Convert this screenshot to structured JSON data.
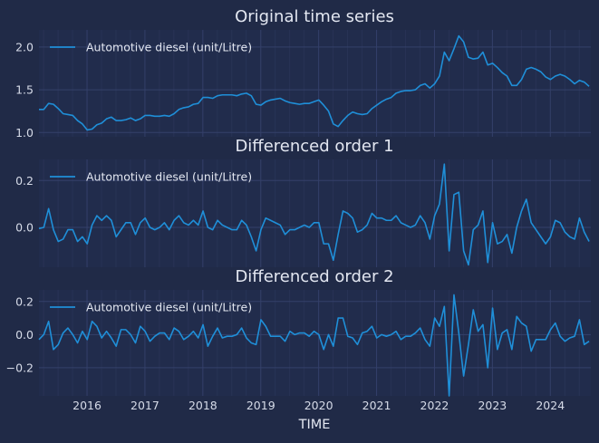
{
  "chart_data": {
    "type": "line",
    "xlabel": "TIME",
    "x_tick_labels": [
      "2016",
      "2017",
      "2018",
      "2019",
      "2020",
      "2021",
      "2022",
      "2023",
      "2024"
    ],
    "x_tick_values": [
      2016,
      2017,
      2018,
      2019,
      2020,
      2021,
      2022,
      2023,
      2024
    ],
    "xlim": [
      2015.17,
      2024.7
    ],
    "x_start": 2015.17,
    "x_step": 0.08333,
    "grid": true,
    "legend_position": "top-left",
    "line_color": "#1f8fd8",
    "panels": [
      {
        "title": "Original time series",
        "ylim": [
          0.95,
          2.2
        ],
        "yticks": [
          1.0,
          1.5,
          2.0
        ],
        "ytick_labels": [
          "1.0",
          "1.5",
          "2.0"
        ],
        "series": [
          {
            "name": "Automotive diesel (unit/Litre)",
            "values": [
              1.27,
              1.27,
              1.34,
              1.33,
              1.28,
              1.22,
              1.21,
              1.2,
              1.14,
              1.1,
              1.03,
              1.04,
              1.09,
              1.11,
              1.16,
              1.18,
              1.14,
              1.14,
              1.15,
              1.17,
              1.14,
              1.16,
              1.2,
              1.2,
              1.19,
              1.19,
              1.2,
              1.19,
              1.22,
              1.27,
              1.29,
              1.3,
              1.33,
              1.34,
              1.41,
              1.41,
              1.4,
              1.43,
              1.44,
              1.44,
              1.44,
              1.43,
              1.45,
              1.46,
              1.43,
              1.33,
              1.32,
              1.36,
              1.38,
              1.39,
              1.4,
              1.37,
              1.35,
              1.34,
              1.33,
              1.34,
              1.34,
              1.36,
              1.38,
              1.32,
              1.25,
              1.1,
              1.07,
              1.14,
              1.2,
              1.24,
              1.22,
              1.21,
              1.22,
              1.28,
              1.32,
              1.36,
              1.39,
              1.41,
              1.46,
              1.48,
              1.49,
              1.49,
              1.5,
              1.55,
              1.57,
              1.52,
              1.57,
              1.66,
              1.94,
              1.84,
              1.98,
              2.13,
              2.06,
              1.88,
              1.86,
              1.87,
              1.94,
              1.79,
              1.81,
              1.76,
              1.7,
              1.66,
              1.55,
              1.55,
              1.62,
              1.74,
              1.76,
              1.74,
              1.71,
              1.65,
              1.62,
              1.66,
              1.68,
              1.66,
              1.62,
              1.57,
              1.61,
              1.59,
              1.54
            ]
          }
        ]
      },
      {
        "title": "Differenced order 1",
        "ylim": [
          -0.17,
          0.29
        ],
        "yticks": [
          0.0,
          0.2
        ],
        "ytick_labels": [
          "0.0",
          "0.2"
        ],
        "series": [
          {
            "name": "Automotive diesel (unit/Litre)",
            "values": [
              -0.005,
              0.0,
              0.08,
              -0.01,
              -0.06,
              -0.05,
              -0.01,
              -0.01,
              -0.06,
              -0.04,
              -0.07,
              0.01,
              0.05,
              0.03,
              0.05,
              0.03,
              -0.04,
              -0.01,
              0.02,
              0.02,
              -0.03,
              0.02,
              0.04,
              0.0,
              -0.01,
              0.0,
              0.02,
              -0.01,
              0.03,
              0.05,
              0.02,
              0.01,
              0.03,
              0.01,
              0.07,
              0.0,
              -0.01,
              0.03,
              0.01,
              0.0,
              -0.01,
              -0.01,
              0.03,
              0.01,
              -0.04,
              -0.1,
              -0.01,
              0.04,
              0.03,
              0.02,
              0.01,
              -0.03,
              -0.01,
              -0.01,
              0.0,
              0.01,
              0.0,
              0.02,
              0.02,
              -0.07,
              -0.07,
              -0.14,
              -0.03,
              0.07,
              0.06,
              0.04,
              -0.02,
              -0.01,
              0.01,
              0.06,
              0.04,
              0.04,
              0.03,
              0.03,
              0.05,
              0.02,
              0.01,
              0.0,
              0.01,
              0.05,
              0.02,
              -0.05,
              0.05,
              0.1,
              0.27,
              -0.1,
              0.14,
              0.15,
              -0.1,
              -0.16,
              -0.01,
              0.01,
              0.07,
              -0.15,
              0.02,
              -0.07,
              -0.06,
              -0.03,
              -0.11,
              0.0,
              0.07,
              0.12,
              0.02,
              -0.01,
              -0.04,
              -0.07,
              -0.04,
              0.03,
              0.02,
              -0.02,
              -0.04,
              -0.05,
              0.04,
              -0.02,
              -0.06
            ]
          }
        ]
      },
      {
        "title": "Differenced order 2",
        "ylim": [
          -0.37,
          0.27
        ],
        "yticks": [
          -0.2,
          0.0,
          0.2
        ],
        "ytick_labels": [
          "−0.2",
          "0.0",
          "0.2"
        ],
        "series": [
          {
            "name": "Automotive diesel (unit/Litre)",
            "values": [
              -0.03,
              0.0,
              0.08,
              -0.09,
              -0.06,
              0.01,
              0.04,
              0.0,
              -0.05,
              0.02,
              -0.03,
              0.08,
              0.05,
              -0.02,
              0.02,
              -0.02,
              -0.07,
              0.03,
              0.03,
              0.0,
              -0.05,
              0.05,
              0.02,
              -0.04,
              -0.01,
              0.01,
              0.01,
              -0.03,
              0.04,
              0.02,
              -0.03,
              -0.01,
              0.02,
              -0.02,
              0.06,
              -0.07,
              -0.01,
              0.04,
              -0.02,
              -0.01,
              -0.01,
              0.0,
              0.04,
              -0.02,
              -0.05,
              -0.06,
              0.09,
              0.05,
              -0.01,
              -0.01,
              -0.01,
              -0.04,
              0.02,
              0.0,
              0.01,
              0.01,
              -0.01,
              0.02,
              0.0,
              -0.09,
              0.0,
              -0.07,
              0.1,
              0.1,
              -0.01,
              -0.02,
              -0.06,
              0.01,
              0.02,
              0.05,
              -0.02,
              0.0,
              -0.01,
              0.0,
              0.02,
              -0.03,
              -0.01,
              -0.01,
              0.01,
              0.04,
              -0.03,
              -0.07,
              0.1,
              0.05,
              0.17,
              -0.37,
              0.24,
              0.01,
              -0.25,
              -0.06,
              0.15,
              0.02,
              0.06,
              -0.2,
              0.16,
              -0.09,
              0.01,
              0.03,
              -0.09,
              0.11,
              0.07,
              0.05,
              -0.1,
              -0.03,
              -0.03,
              -0.03,
              0.03,
              0.07,
              -0.01,
              -0.04,
              -0.02,
              -0.01,
              0.09,
              -0.06,
              -0.04
            ]
          }
        ]
      }
    ]
  }
}
